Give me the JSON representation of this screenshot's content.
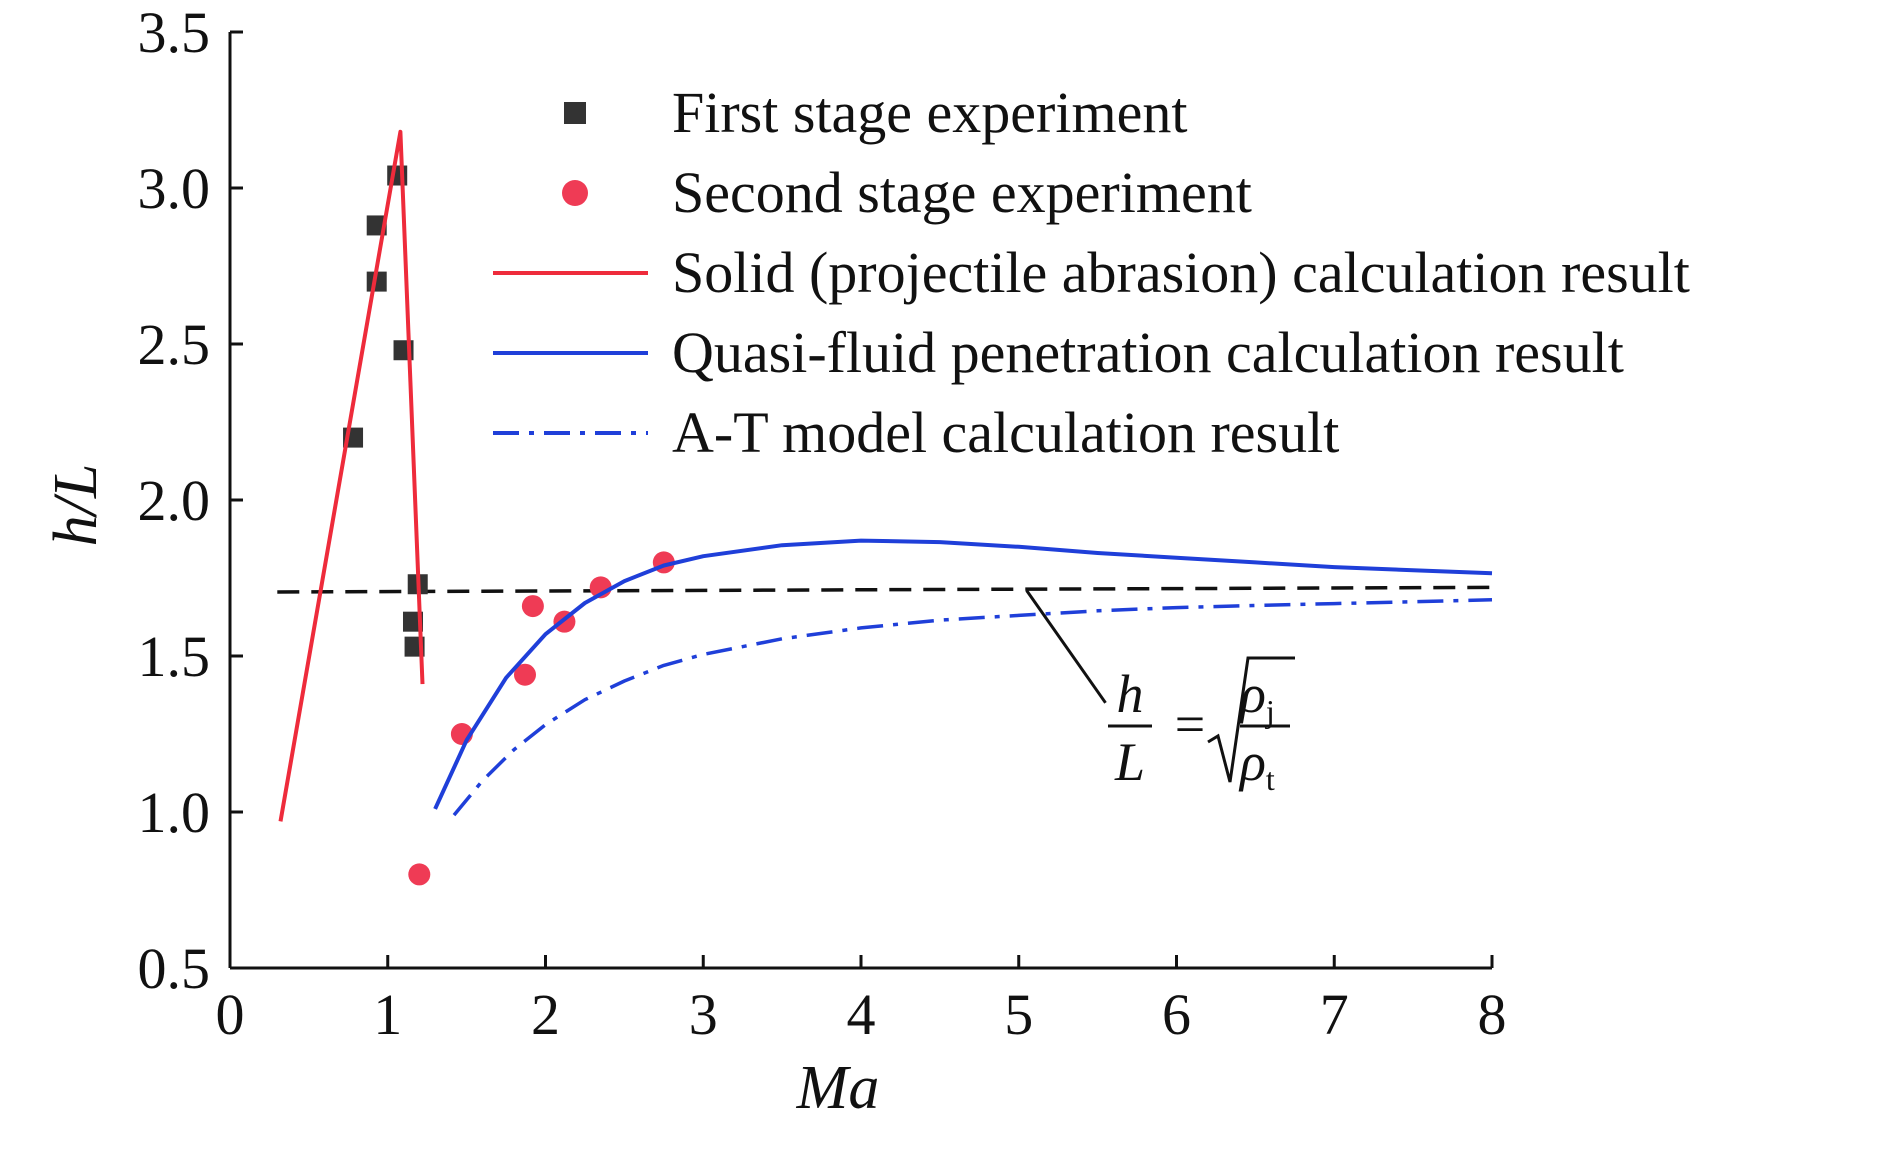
{
  "chart_data": {
    "type": "scatter",
    "title": "",
    "xlabel": "Ma",
    "ylabel": "h/L",
    "xlim": [
      0,
      8
    ],
    "ylim": [
      0.5,
      3.5
    ],
    "x_ticks": [
      "0",
      "1",
      "2",
      "3",
      "4",
      "5",
      "6",
      "7",
      "8"
    ],
    "y_ticks": [
      "0.5",
      "1.0",
      "1.5",
      "2.0",
      "2.5",
      "3.0",
      "3.5"
    ],
    "grid": false,
    "legend_position": "top-right",
    "series": [
      {
        "name": "First stage experiment",
        "kind": "markers",
        "marker": "square",
        "color": "#333333",
        "points": [
          [
            0.78,
            2.2
          ],
          [
            0.93,
            2.7
          ],
          [
            0.93,
            2.88
          ],
          [
            1.06,
            3.04
          ],
          [
            1.1,
            2.48
          ],
          [
            1.19,
            1.73
          ],
          [
            1.16,
            1.61
          ],
          [
            1.17,
            1.53
          ]
        ]
      },
      {
        "name": "Second stage experiment",
        "kind": "markers",
        "marker": "circle",
        "color": "#ef3b55",
        "points": [
          [
            1.2,
            0.8
          ],
          [
            1.47,
            1.25
          ],
          [
            1.87,
            1.44
          ],
          [
            1.92,
            1.66
          ],
          [
            2.12,
            1.61
          ],
          [
            2.35,
            1.72
          ],
          [
            2.75,
            1.8
          ]
        ]
      },
      {
        "name": "Solid (projectile abrasion) calculation result",
        "kind": "line",
        "style": "solid",
        "color": "#ee2b3b",
        "points": [
          [
            0.32,
            0.97
          ],
          [
            1.08,
            3.18
          ],
          [
            1.22,
            1.41
          ]
        ]
      },
      {
        "name": "Quasi-fluid penetration calculation result",
        "kind": "line",
        "style": "solid",
        "color": "#1f3fd9",
        "points": [
          [
            1.3,
            1.01
          ],
          [
            1.5,
            1.23
          ],
          [
            1.75,
            1.43
          ],
          [
            2.0,
            1.57
          ],
          [
            2.25,
            1.67
          ],
          [
            2.5,
            1.74
          ],
          [
            2.75,
            1.79
          ],
          [
            3.0,
            1.82
          ],
          [
            3.5,
            1.855
          ],
          [
            4.0,
            1.87
          ],
          [
            4.5,
            1.865
          ],
          [
            5.0,
            1.85
          ],
          [
            5.5,
            1.83
          ],
          [
            6.0,
            1.815
          ],
          [
            6.5,
            1.8
          ],
          [
            7.0,
            1.785
          ],
          [
            7.5,
            1.775
          ],
          [
            8.0,
            1.765
          ]
        ]
      },
      {
        "name": "A-T model calculation result",
        "kind": "line",
        "style": "dashdot",
        "color": "#1f3fd9",
        "points": [
          [
            1.42,
            0.99
          ],
          [
            1.6,
            1.1
          ],
          [
            1.8,
            1.2
          ],
          [
            2.0,
            1.28
          ],
          [
            2.25,
            1.36
          ],
          [
            2.5,
            1.42
          ],
          [
            2.75,
            1.47
          ],
          [
            3.0,
            1.505
          ],
          [
            3.5,
            1.555
          ],
          [
            4.0,
            1.59
          ],
          [
            4.5,
            1.615
          ],
          [
            5.0,
            1.63
          ],
          [
            5.5,
            1.645
          ],
          [
            6.0,
            1.655
          ],
          [
            6.5,
            1.662
          ],
          [
            7.0,
            1.668
          ],
          [
            7.5,
            1.674
          ],
          [
            8.0,
            1.68
          ]
        ]
      },
      {
        "kind": "line",
        "style": "dashed",
        "color": "#111111",
        "points": [
          [
            0.3,
            1.705
          ],
          [
            8.0,
            1.72
          ]
        ]
      }
    ],
    "annotation": {
      "h": "h",
      "L": "L",
      "equals": "=",
      "rho": "ρ",
      "sub_j": "j",
      "sub_t": "t",
      "leader_from": [
        5.05,
        1.71
      ],
      "leader_to": [
        5.55,
        1.35
      ]
    }
  }
}
